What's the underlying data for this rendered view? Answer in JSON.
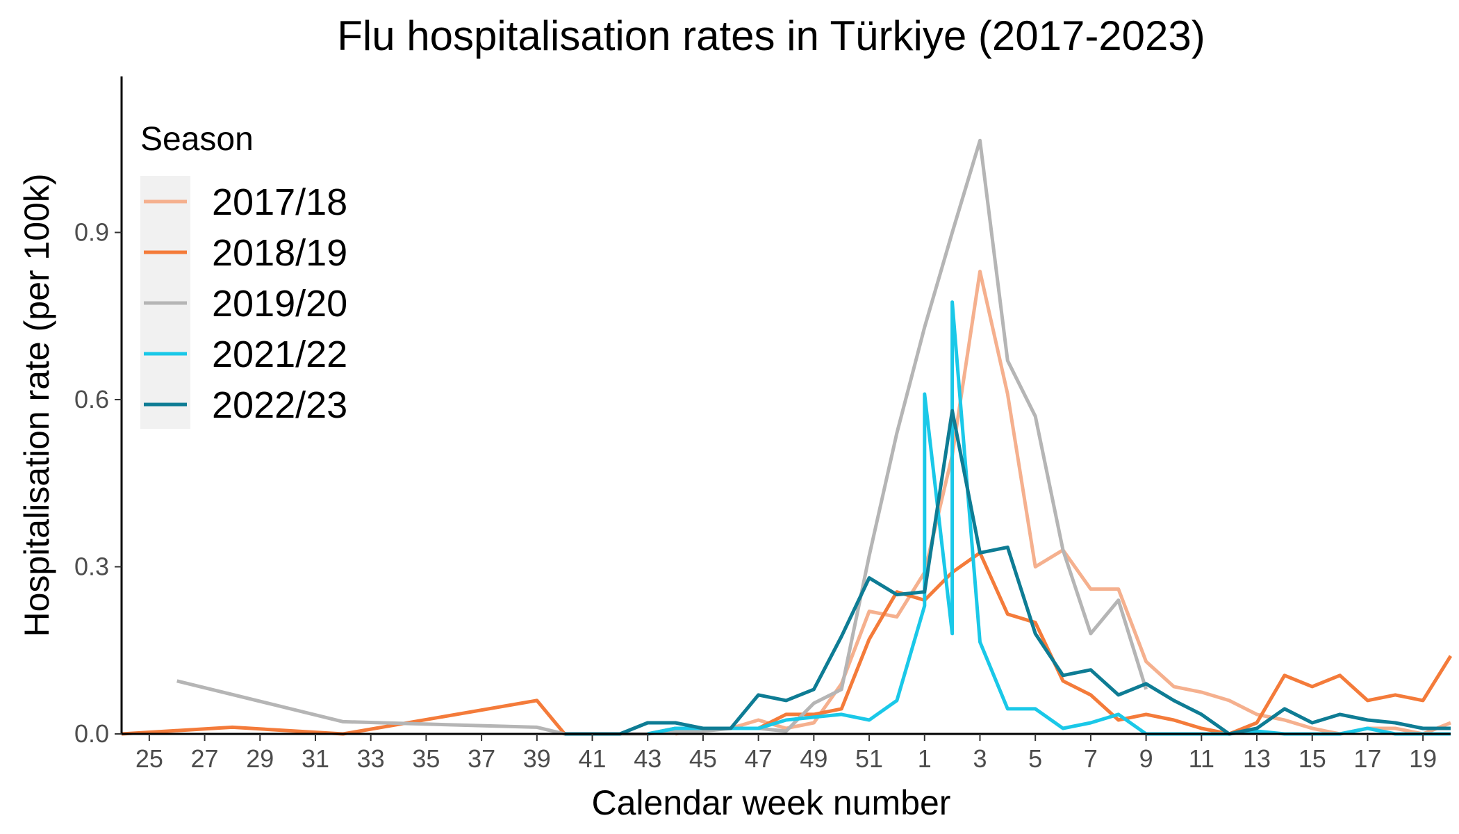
{
  "chart_data": {
    "type": "line",
    "title": "Flu hospitalisation rates in Türkiye (2017-2023)",
    "xlabel": "Calendar week number",
    "ylabel": "Hospitalisation rate (per 100k)",
    "x_tick_labels": [
      "25",
      "27",
      "29",
      "31",
      "33",
      "35",
      "37",
      "39",
      "41",
      "43",
      "45",
      "47",
      "49",
      "51",
      "1",
      "3",
      "5",
      "7",
      "9",
      "11",
      "13",
      "15",
      "17",
      "19"
    ],
    "x_weeks_sequence": [
      24,
      25,
      26,
      27,
      28,
      29,
      30,
      31,
      32,
      33,
      34,
      35,
      36,
      37,
      38,
      39,
      40,
      41,
      42,
      43,
      44,
      45,
      46,
      47,
      48,
      49,
      50,
      51,
      52,
      1,
      2,
      3,
      4,
      5,
      6,
      7,
      8,
      9,
      10,
      11,
      12,
      13,
      14,
      15,
      16,
      17,
      18,
      19,
      20
    ],
    "y_ticks": [
      "0.0",
      "0.3",
      "0.6",
      "0.9"
    ],
    "ylim": [
      0,
      1.18
    ],
    "grid": false,
    "legend": {
      "title": "Season",
      "placement": "top-left"
    },
    "series": [
      {
        "name": "2017/18",
        "color": "#F5B08E",
        "points": [
          [
            44,
            0.0
          ],
          [
            45,
            0.01
          ],
          [
            46,
            0.01
          ],
          [
            47,
            0.025
          ],
          [
            48,
            0.01
          ],
          [
            49,
            0.02
          ],
          [
            50,
            0.09
          ],
          [
            51,
            0.22
          ],
          [
            52,
            0.21
          ],
          [
            1,
            0.29
          ],
          [
            2,
            0.5
          ],
          [
            3,
            0.83
          ],
          [
            4,
            0.61
          ],
          [
            5,
            0.3
          ],
          [
            6,
            0.33
          ],
          [
            7,
            0.26
          ],
          [
            8,
            0.26
          ],
          [
            9,
            0.13
          ],
          [
            10,
            0.085
          ],
          [
            11,
            0.075
          ],
          [
            12,
            0.06
          ],
          [
            13,
            0.035
          ],
          [
            14,
            0.025
          ],
          [
            15,
            0.01
          ],
          [
            16,
            0.0
          ],
          [
            17,
            0.01
          ],
          [
            18,
            0.01
          ],
          [
            19,
            0.0
          ],
          [
            20,
            0.02
          ]
        ]
      },
      {
        "name": "2018/19",
        "color": "#F47B3A",
        "points": [
          [
            24,
            0.0
          ],
          [
            28,
            0.012
          ],
          [
            32,
            0.0
          ],
          [
            39,
            0.06
          ],
          [
            40,
            0.0
          ],
          [
            41,
            0.0
          ],
          [
            42,
            0.0
          ],
          [
            43,
            0.0
          ],
          [
            44,
            0.01
          ],
          [
            45,
            0.01
          ],
          [
            46,
            0.01
          ],
          [
            47,
            0.01
          ],
          [
            48,
            0.035
          ],
          [
            49,
            0.035
          ],
          [
            50,
            0.045
          ],
          [
            51,
            0.17
          ],
          [
            52,
            0.255
          ],
          [
            1,
            0.24
          ],
          [
            2,
            0.29
          ],
          [
            3,
            0.325
          ],
          [
            4,
            0.215
          ],
          [
            5,
            0.2
          ],
          [
            6,
            0.095
          ],
          [
            7,
            0.07
          ],
          [
            8,
            0.025
          ],
          [
            9,
            0.035
          ],
          [
            10,
            0.025
          ],
          [
            11,
            0.01
          ],
          [
            12,
            0.0
          ],
          [
            13,
            0.02
          ],
          [
            14,
            0.105
          ],
          [
            15,
            0.085
          ],
          [
            16,
            0.105
          ],
          [
            17,
            0.06
          ],
          [
            18,
            0.07
          ],
          [
            19,
            0.06
          ],
          [
            20,
            0.14
          ]
        ]
      },
      {
        "name": "2019/20",
        "color": "#B5B5B5",
        "points": [
          [
            26,
            0.095
          ],
          [
            32,
            0.022
          ],
          [
            39,
            0.012
          ],
          [
            40,
            0.0
          ],
          [
            41,
            0.0
          ],
          [
            42,
            0.0
          ],
          [
            43,
            0.0
          ],
          [
            44,
            0.005
          ],
          [
            45,
            0.005
          ],
          [
            46,
            0.01
          ],
          [
            47,
            0.01
          ],
          [
            48,
            0.005
          ],
          [
            49,
            0.055
          ],
          [
            50,
            0.08
          ],
          [
            51,
            0.32
          ],
          [
            52,
            0.54
          ],
          [
            1,
            0.73
          ],
          [
            2,
            0.9
          ],
          [
            3,
            1.065
          ],
          [
            4,
            0.67
          ],
          [
            5,
            0.57
          ],
          [
            6,
            0.33
          ],
          [
            7,
            0.18
          ],
          [
            8,
            0.24
          ],
          [
            9,
            0.08
          ]
        ]
      },
      {
        "name": "2021/22",
        "color": "#1AC8E8",
        "points": [
          [
            43,
            0.0
          ],
          [
            44,
            0.01
          ],
          [
            45,
            0.01
          ],
          [
            46,
            0.01
          ],
          [
            47,
            0.01
          ],
          [
            48,
            0.025
          ],
          [
            49,
            0.03
          ],
          [
            50,
            0.035
          ],
          [
            51,
            0.025
          ],
          [
            52,
            0.06
          ],
          [
            1,
            0.23
          ],
          [
            1,
            0.61
          ],
          [
            2,
            0.18
          ],
          [
            2,
            0.775
          ],
          [
            3,
            0.165
          ],
          [
            4,
            0.045
          ],
          [
            5,
            0.045
          ],
          [
            6,
            0.01
          ],
          [
            7,
            0.02
          ],
          [
            8,
            0.035
          ],
          [
            9,
            0.0
          ],
          [
            10,
            0.0
          ],
          [
            11,
            0.0
          ],
          [
            12,
            0.0
          ],
          [
            13,
            0.005
          ],
          [
            14,
            0.0
          ],
          [
            15,
            0.0
          ],
          [
            16,
            0.0
          ],
          [
            17,
            0.01
          ],
          [
            18,
            0.0
          ],
          [
            19,
            0.0
          ],
          [
            20,
            0.0
          ]
        ]
      },
      {
        "name": "2022/23",
        "color": "#0E7C94",
        "points": [
          [
            40,
            0.0
          ],
          [
            41,
            0.0
          ],
          [
            42,
            0.0
          ],
          [
            43,
            0.02
          ],
          [
            44,
            0.02
          ],
          [
            45,
            0.01
          ],
          [
            46,
            0.01
          ],
          [
            47,
            0.07
          ],
          [
            48,
            0.06
          ],
          [
            49,
            0.08
          ],
          [
            50,
            0.175
          ],
          [
            51,
            0.28
          ],
          [
            52,
            0.25
          ],
          [
            1,
            0.255
          ],
          [
            2,
            0.58
          ],
          [
            3,
            0.325
          ],
          [
            4,
            0.335
          ],
          [
            5,
            0.18
          ],
          [
            6,
            0.105
          ],
          [
            7,
            0.115
          ],
          [
            8,
            0.07
          ],
          [
            9,
            0.09
          ],
          [
            10,
            0.06
          ],
          [
            11,
            0.035
          ],
          [
            12,
            0.0
          ],
          [
            13,
            0.01
          ],
          [
            14,
            0.045
          ],
          [
            15,
            0.02
          ],
          [
            16,
            0.035
          ],
          [
            17,
            0.025
          ],
          [
            18,
            0.02
          ],
          [
            19,
            0.01
          ],
          [
            20,
            0.01
          ]
        ]
      }
    ]
  }
}
